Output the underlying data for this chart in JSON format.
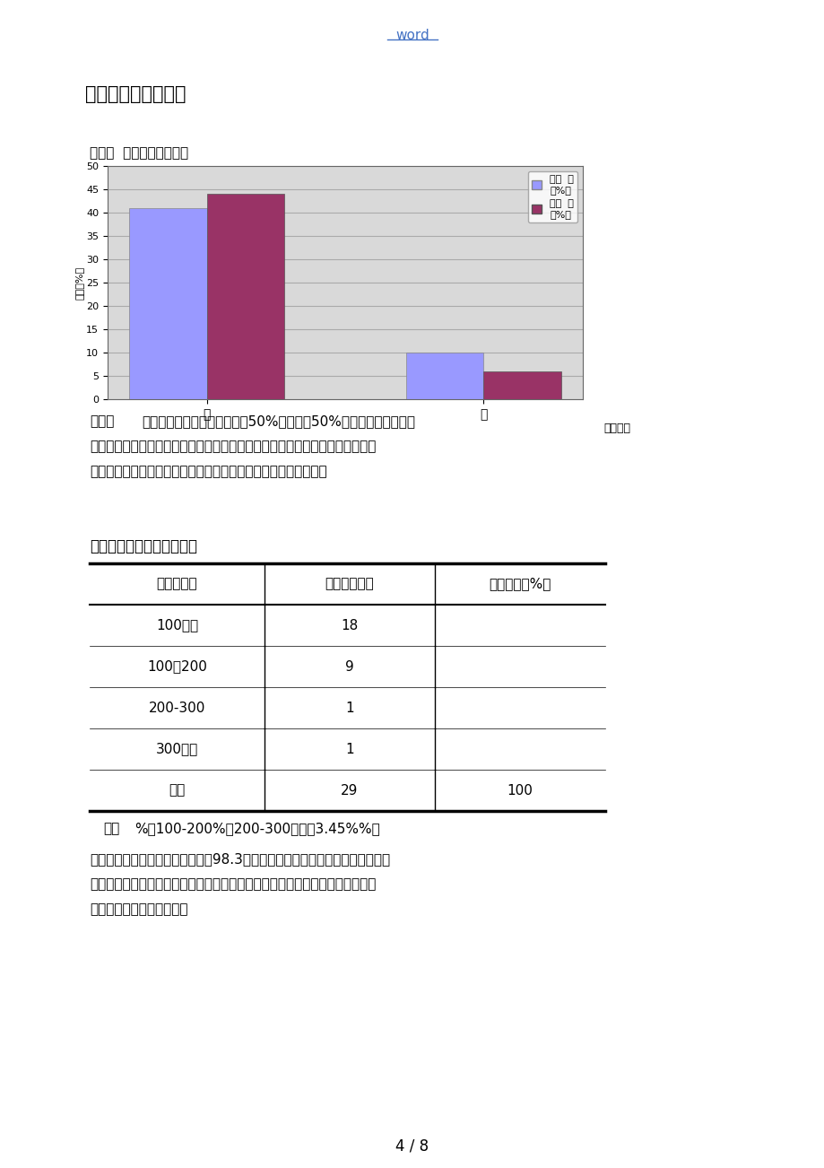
{
  "page_bg": "#ffffff",
  "header_text": "word",
  "header_color": "#4472c4",
  "section_title": "（四）调查结果分析",
  "fig1_label": "图一：  性别对网购的影响",
  "chart_ylabel": "频率（%）",
  "chart_xlabel": "是否网购",
  "bar_categories": [
    "有",
    "无"
  ],
  "bar_male": [
    41,
    10
  ],
  "bar_female": [
    44,
    6
  ],
  "bar_male_color": "#9999ff",
  "bar_female_color": "#993366",
  "legend_male": "性别  男\n（%）",
  "legend_female": "性别  女\n（%）",
  "chart_yticks": [
    0,
    5,
    10,
    15,
    20,
    25,
    30,
    35,
    40,
    45,
    50
  ],
  "chart_bg": "#d9d9d9",
  "chart_grid_color": "#aaaaaa",
  "fig2_label": "图二：大学生网购花费情况",
  "table_headers": [
    "花费（元）",
    "学生数（人）",
    "频率（比重%）"
  ],
  "table_rows": [
    [
      "100以下",
      "18",
      ""
    ],
    [
      "100－200",
      "9",
      ""
    ],
    [
      "200-300",
      "1",
      ""
    ],
    [
      "300以上",
      "1",
      ""
    ],
    [
      "合计",
      "29",
      "100"
    ]
  ],
  "page_num": "4 / 8"
}
